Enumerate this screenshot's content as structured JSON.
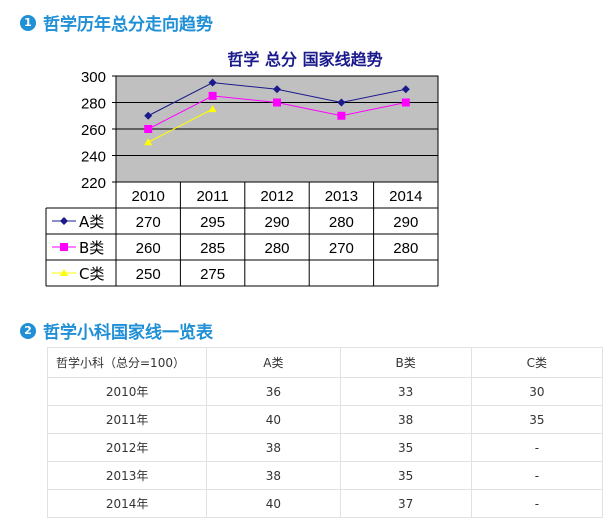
{
  "section1": {
    "number": "1",
    "title": "哲学历年总分走向趋势"
  },
  "section2": {
    "number": "2",
    "title": "哲学小科国家线一览表"
  },
  "chart_data": {
    "type": "line",
    "title": "哲学  总分  国家线趋势",
    "categories": [
      "2010",
      "2011",
      "2012",
      "2013",
      "2014"
    ],
    "ylim": [
      220,
      300
    ],
    "yticks": [
      220,
      240,
      260,
      280,
      300
    ],
    "grid": true,
    "legend": "data-table",
    "series": [
      {
        "name": "A类",
        "values": [
          270,
          295,
          290,
          280,
          290
        ],
        "color": "#1a1a8c",
        "marker": "diamond"
      },
      {
        "name": "B类",
        "values": [
          260,
          285,
          280,
          270,
          280
        ],
        "color": "#ff00ff",
        "marker": "square"
      },
      {
        "name": "C类",
        "values": [
          250,
          275,
          null,
          null,
          null
        ],
        "color": "#ffff00",
        "marker": "triangle"
      }
    ]
  },
  "table": {
    "headers": [
      "哲学小科（总分=100）",
      "A类",
      "B类",
      "C类"
    ],
    "rows": [
      [
        "2010年",
        "36",
        "33",
        "30"
      ],
      [
        "2011年",
        "40",
        "38",
        "35"
      ],
      [
        "2012年",
        "38",
        "35",
        "-"
      ],
      [
        "2013年",
        "38",
        "35",
        "-"
      ],
      [
        "2014年",
        "40",
        "37",
        "-"
      ]
    ]
  }
}
